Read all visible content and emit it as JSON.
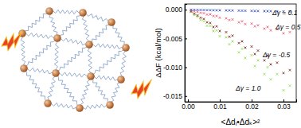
{
  "chart_data": {
    "type": "scatter",
    "x_label": "<Δdᵢ•Δdₖ>²",
    "y_label": "ΔΔF (kcal/mol)",
    "xlim": [
      -0.001,
      0.034
    ],
    "ylim": [
      -0.016,
      0.001
    ],
    "xticks": [
      {
        "value": 0,
        "label": "0.00"
      },
      0.01,
      0.02,
      0.03
    ],
    "yticks": [
      {
        "value": 0,
        "label": "0.000"
      },
      -0.005,
      {
        "value": -0.01,
        "label": "-0.010"
      },
      -0.015
    ],
    "marker": "cross",
    "series": [
      {
        "color": "#86e040",
        "x": [
          0.001,
          0.002,
          0.003,
          0.004,
          0.005,
          0.006,
          0.007,
          0.008,
          0.009,
          0.01,
          0.012,
          0.013,
          0.014,
          0.016,
          0.017,
          0.018,
          0.02,
          0.021,
          0.022,
          0.024,
          0.025,
          0.026,
          0.028,
          0.03,
          0.032
        ],
        "values": [
          -0.0004,
          -0.0009,
          -0.0012,
          -0.0018,
          -0.002,
          -0.0028,
          -0.0028,
          -0.0037,
          -0.0036,
          -0.0046,
          -0.0048,
          -0.006,
          -0.0055,
          -0.0074,
          -0.0068,
          -0.0084,
          -0.0079,
          -0.0098,
          -0.0088,
          -0.0112,
          -0.01,
          -0.0121,
          -0.0112,
          -0.014,
          -0.0132
        ]
      },
      {
        "color": "#7a1a12",
        "x": [
          0.001,
          0.002,
          0.003,
          0.004,
          0.005,
          0.006,
          0.007,
          0.008,
          0.009,
          0.01,
          0.012,
          0.013,
          0.014,
          0.016,
          0.017,
          0.018,
          0.02,
          0.021,
          0.022,
          0.024,
          0.025,
          0.026,
          0.028,
          0.03,
          0.032
        ],
        "values": [
          -0.0003,
          -0.0007,
          -0.001,
          -0.0014,
          -0.0016,
          -0.0022,
          -0.0023,
          -0.003,
          -0.0029,
          -0.0037,
          -0.0039,
          -0.0047,
          -0.0045,
          -0.0058,
          -0.0055,
          -0.0066,
          -0.0064,
          -0.0077,
          -0.0071,
          -0.0088,
          -0.008,
          -0.0095,
          -0.0092,
          -0.011,
          -0.0105
        ]
      },
      {
        "color": "#f0506a",
        "x": [
          0.001,
          0.002,
          0.003,
          0.004,
          0.005,
          0.006,
          0.007,
          0.008,
          0.009,
          0.01,
          0.012,
          0.013,
          0.014,
          0.016,
          0.017,
          0.018,
          0.02,
          0.021,
          0.022,
          0.024,
          0.025,
          0.026,
          0.028,
          0.03,
          0.032
        ],
        "values": [
          -0.00012,
          -0.00028,
          -0.00036,
          -0.00055,
          -0.0006,
          -0.00085,
          -0.0008,
          -0.0011,
          -0.0011,
          -0.0014,
          -0.0015,
          -0.0018,
          -0.0017,
          -0.0022,
          -0.002,
          -0.0025,
          -0.0024,
          -0.0029,
          -0.0027,
          -0.0033,
          -0.003,
          -0.0036,
          -0.0034,
          -0.0041,
          -0.0039
        ]
      },
      {
        "color": "#2040c8",
        "x": [
          0.001,
          0.002,
          0.003,
          0.004,
          0.005,
          0.006,
          0.007,
          0.008,
          0.009,
          0.01,
          0.012,
          0.013,
          0.014,
          0.016,
          0.017,
          0.018,
          0.02,
          0.021,
          0.022,
          0.024,
          0.025,
          0.026,
          0.028,
          0.03,
          0.032
        ],
        "values": [
          -1e-05,
          -2e-05,
          -3e-05,
          -4e-05,
          -5e-05,
          -6e-05,
          -7e-05,
          -8e-05,
          -9e-05,
          -0.0001,
          -0.00012,
          -0.00013,
          -0.00014,
          -0.00016,
          -0.00017,
          -0.00018,
          -0.0002,
          -0.00021,
          -0.00022,
          -0.00024,
          -0.00025,
          -0.00026,
          -0.00028,
          -0.0003,
          -0.00032
        ]
      }
    ],
    "annotations": [
      {
        "text": "Δγ = 0.1",
        "x": 0.0265,
        "y": -0.0009,
        "color": "#2040c8"
      },
      {
        "text": "Δγ = 0.5",
        "x": 0.0275,
        "y": -0.0034,
        "color": "#f0506a"
      },
      {
        "text": "Δγ = -0.5",
        "x": 0.0235,
        "y": -0.0082,
        "color": "#7a1a12"
      },
      {
        "text": "Δγ = 1.0",
        "x": 0.015,
        "y": -0.014,
        "color": "#86e040"
      }
    ]
  }
}
